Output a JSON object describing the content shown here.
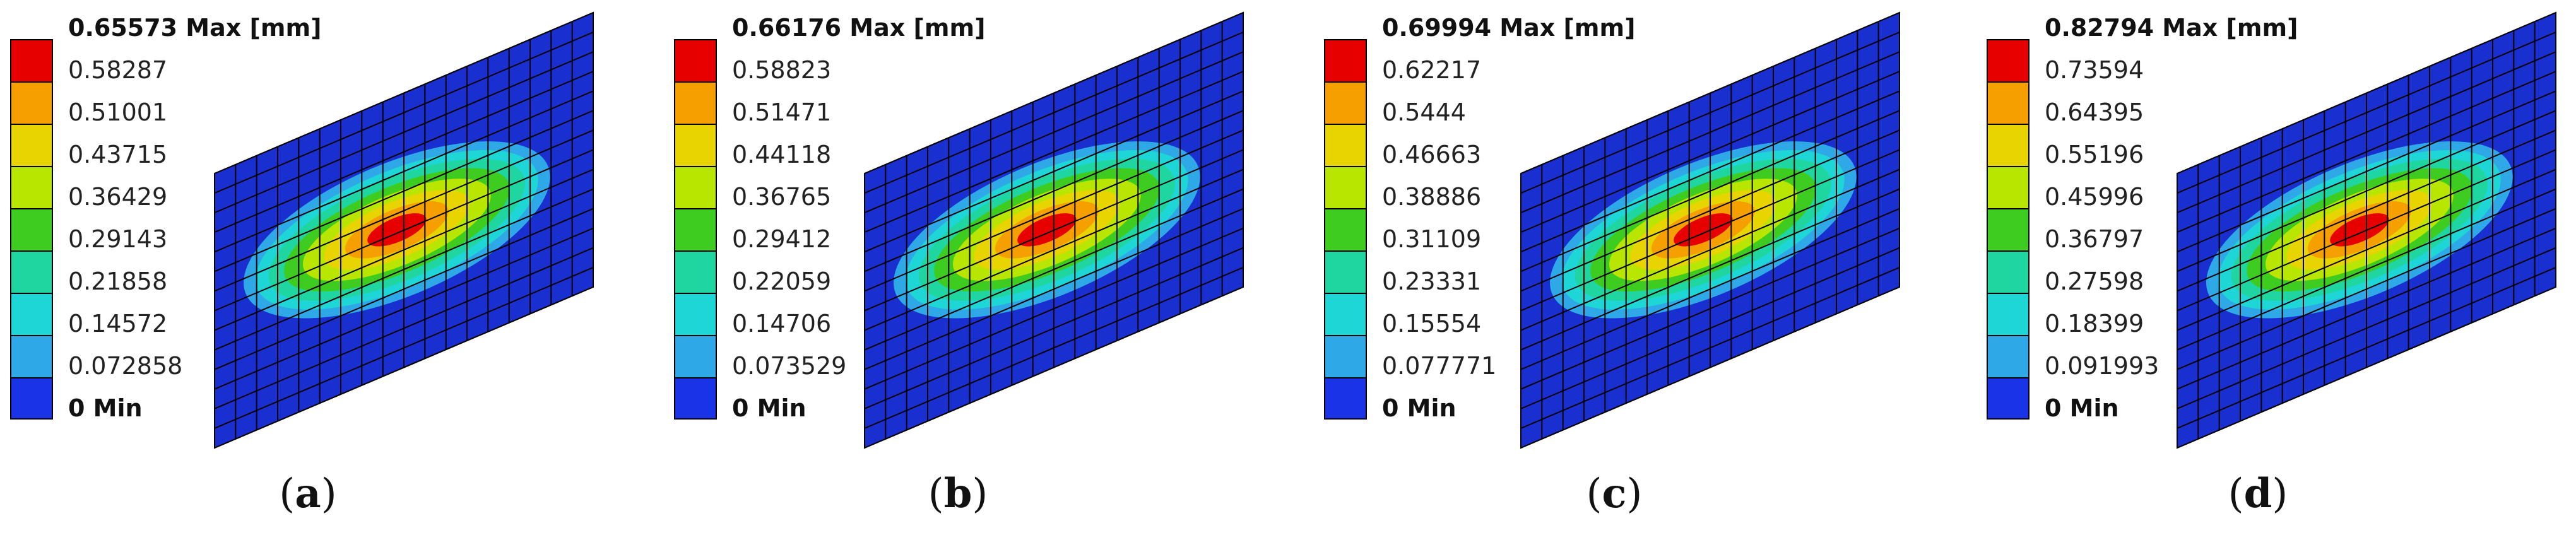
{
  "unit": "[mm]",
  "legend_colors": [
    "#e60000",
    "#f5a000",
    "#e8d400",
    "#b8e600",
    "#3dcc1f",
    "#1fd6a0",
    "#1fd6d6",
    "#2ea8e6",
    "#1a33e6"
  ],
  "panels": [
    {
      "caption": "a",
      "max_label": "0.65573 Max [mm]",
      "levels": [
        "0.58287",
        "0.51001",
        "0.43715",
        "0.36429",
        "0.29143",
        "0.21858",
        "0.14572",
        "0.072858"
      ],
      "min_label": "0 Min",
      "max_value": 0.65573
    },
    {
      "caption": "b",
      "max_label": "0.66176 Max [mm]",
      "levels": [
        "0.58823",
        "0.51471",
        "0.44118",
        "0.36765",
        "0.29412",
        "0.22059",
        "0.14706",
        "0.073529"
      ],
      "min_label": "0 Min",
      "max_value": 0.66176
    },
    {
      "caption": "c",
      "max_label": "0.69994 Max [mm]",
      "levels": [
        "0.62217",
        "0.5444",
        "0.46663",
        "0.38886",
        "0.31109",
        "0.23331",
        "0.15554",
        "0.077771"
      ],
      "min_label": "0 Min",
      "max_value": 0.69994
    },
    {
      "caption": "d",
      "max_label": "0.82794 Max [mm]",
      "levels": [
        "0.73594",
        "0.64395",
        "0.55196",
        "0.45996",
        "0.36797",
        "0.27598",
        "0.18399",
        "0.091993"
      ],
      "min_label": "0 Min",
      "max_value": 0.82794
    }
  ]
}
